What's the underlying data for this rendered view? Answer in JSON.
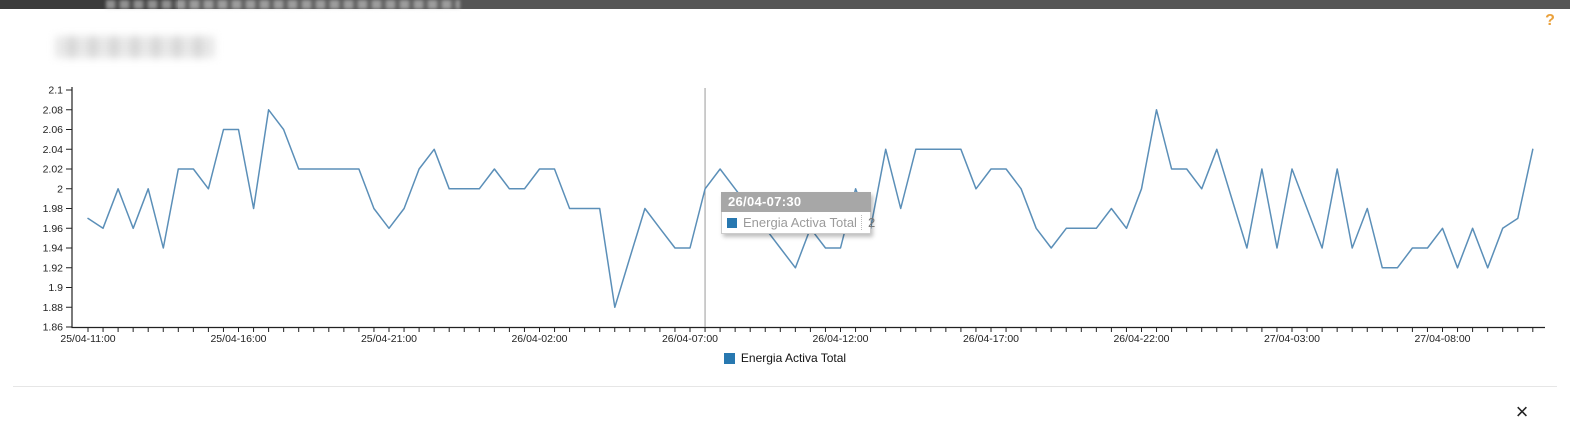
{
  "header": {
    "help_icon": "?"
  },
  "chart_data": {
    "type": "line",
    "title": "",
    "xlabel": "",
    "ylabel": "",
    "start_time": "25/04-11:00",
    "end_time": "27/04-11:00",
    "interval_minutes": 30,
    "x_tick_labels": [
      "25/04-11:00",
      "25/04-16:00",
      "25/04-21:00",
      "26/04-02:00",
      "26/04-07:00",
      "26/04-12:00",
      "26/04-17:00",
      "26/04-22:00",
      "27/04-03:00",
      "27/04-08:00"
    ],
    "x_label_every": 10,
    "y_tick_labels": [
      "2.1",
      "2.08",
      "2.06",
      "2.04",
      "2.02",
      "2",
      "1.98",
      "1.96",
      "1.94",
      "1.92",
      "1.9",
      "1.88",
      "1.86"
    ],
    "ylim": [
      1.86,
      2.1
    ],
    "grid": false,
    "legend_position": "bottom",
    "line_color": "#5b8fb8",
    "marker_color": "#2878b0",
    "axis_color": "#222222",
    "cursor_color": "#9a9a9a",
    "series": [
      {
        "name": "Energia Activa Total",
        "values": [
          1.97,
          1.96,
          2.0,
          1.96,
          2.0,
          1.94,
          2.02,
          2.02,
          2.0,
          2.06,
          2.06,
          1.98,
          2.08,
          2.06,
          2.02,
          2.02,
          2.02,
          2.02,
          2.02,
          1.98,
          1.96,
          1.98,
          2.02,
          2.04,
          2.0,
          2.0,
          2.0,
          2.02,
          2.0,
          2.0,
          2.02,
          2.02,
          1.98,
          1.98,
          1.98,
          1.88,
          1.93,
          1.98,
          1.96,
          1.94,
          1.94,
          2.0,
          2.02,
          2.0,
          1.98,
          1.96,
          1.94,
          1.92,
          1.96,
          1.94,
          1.94,
          2.0,
          1.96,
          2.04,
          1.98,
          2.04,
          2.04,
          2.04,
          2.04,
          2.0,
          2.02,
          2.02,
          2.0,
          1.96,
          1.94,
          1.96,
          1.96,
          1.96,
          1.98,
          1.96,
          2.0,
          2.08,
          2.02,
          2.02,
          2.0,
          2.04,
          1.99,
          1.94,
          2.02,
          1.94,
          2.02,
          1.98,
          1.94,
          2.02,
          1.94,
          1.98,
          1.92,
          1.92,
          1.94,
          1.94,
          1.96,
          1.92,
          1.96,
          1.92,
          1.96,
          1.97,
          2.04
        ]
      }
    ]
  },
  "tooltip": {
    "title": "26/04-07:30",
    "series_label": "Energia Activa Total",
    "value": "2",
    "point_index": 41
  },
  "legend": {
    "label": "Energia Activa Total"
  },
  "footer": {
    "close_icon": "×"
  }
}
